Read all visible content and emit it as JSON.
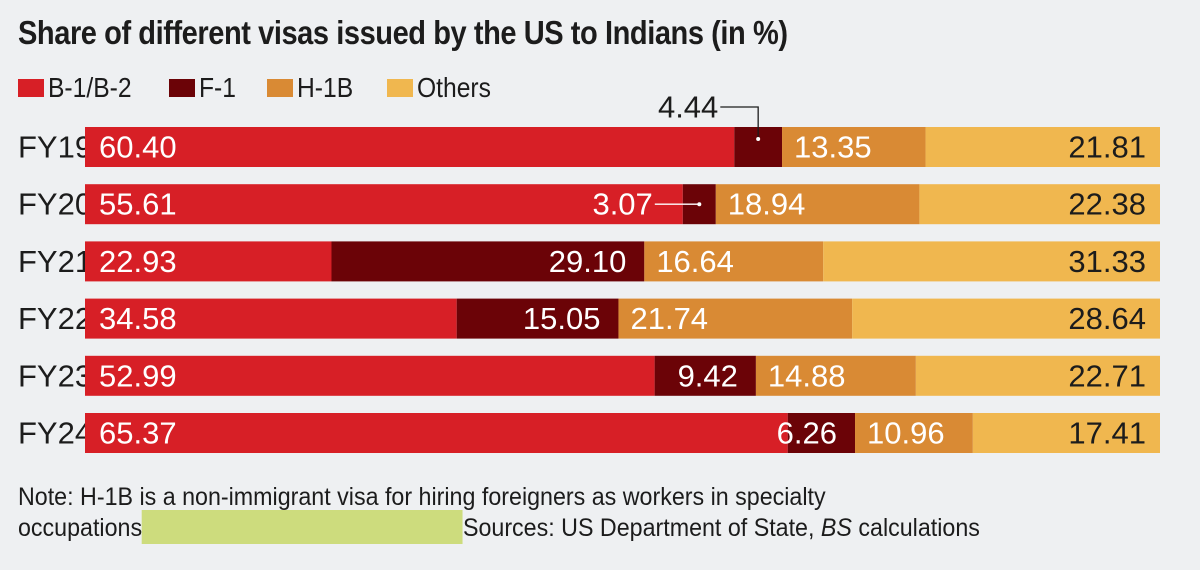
{
  "title": "Share of different visas issued by the US to Indians (in %)",
  "legend": [
    {
      "label": "B-1/B-2",
      "color": "#d71f26"
    },
    {
      "label": "F-1",
      "color": "#6b0307"
    },
    {
      "label": "H-1B",
      "color": "#d98a34"
    },
    {
      "label": "Others",
      "color": "#f0b74f"
    }
  ],
  "chart_data": {
    "type": "bar",
    "orientation": "horizontal",
    "stacked": true,
    "title": "Share of different visas issued by the US to Indians (in %)",
    "categories": [
      "FY19",
      "FY20",
      "FY21",
      "FY22",
      "FY23",
      "FY24"
    ],
    "series": [
      {
        "name": "B-1/B-2",
        "color": "#d71f26",
        "values": [
          60.4,
          55.61,
          22.93,
          34.58,
          52.99,
          65.37
        ],
        "labels": [
          "60.40",
          "55.61",
          "22.93",
          "34.58",
          "52.99",
          "65.37"
        ]
      },
      {
        "name": "F-1",
        "color": "#6b0307",
        "values": [
          4.44,
          3.07,
          29.1,
          15.05,
          9.42,
          6.26
        ],
        "labels": [
          "4.44",
          "3.07",
          "29.10",
          "15.05",
          "9.42",
          "6.26"
        ]
      },
      {
        "name": "H-1B",
        "color": "#d98a34",
        "values": [
          13.35,
          18.94,
          16.64,
          21.74,
          14.88,
          10.96
        ],
        "labels": [
          "13.35",
          "18.94",
          "16.64",
          "21.74",
          "14.88",
          "10.96"
        ]
      },
      {
        "name": "Others",
        "color": "#f0b74f",
        "values": [
          21.81,
          22.38,
          31.33,
          28.64,
          22.71,
          17.41
        ],
        "labels": [
          "21.81",
          "22.38",
          "31.33",
          "28.64",
          "22.71",
          "17.41"
        ]
      }
    ],
    "xlim": [
      0,
      100
    ],
    "xlabel": "",
    "ylabel": "",
    "grid": false,
    "legend_position": "top-left"
  },
  "note": {
    "line1": "Note:  H-1B is a non-immigrant visa for hiring foreigners as workers in specialty",
    "line2_start": "occupations",
    "line2_sources": "Sources: US Department of State, ",
    "line2_italic": "BS",
    "line2_end": " calculations"
  }
}
